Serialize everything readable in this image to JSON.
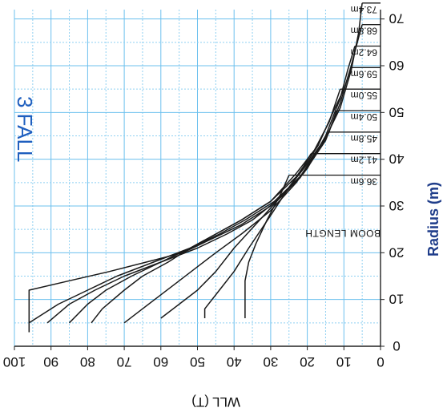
{
  "chart_data": {
    "type": "line",
    "title": "3 FALL",
    "xlabel": "WLL (T)",
    "ylabel": "Radius (m)",
    "annotation": "BOOM LENGTH",
    "xlim": [
      100,
      0
    ],
    "ylim": [
      0,
      72
    ],
    "x_ticks": [
      "100",
      "90",
      "80",
      "70",
      "60",
      "50",
      "40",
      "30",
      "20",
      "10",
      "0"
    ],
    "y_ticks": [
      "0",
      "10",
      "20",
      "30",
      "40",
      "50",
      "60",
      "70"
    ],
    "grid": "on",
    "series": [
      {
        "name": "36.6m",
        "points": [
          [
            37,
            6
          ],
          [
            37,
            14
          ],
          [
            36,
            18
          ],
          [
            34,
            22
          ],
          [
            31,
            27
          ],
          [
            27,
            33
          ],
          [
            25,
            36.6
          ]
        ]
      },
      {
        "name": "41.2m",
        "points": [
          [
            48,
            6
          ],
          [
            48,
            8
          ],
          [
            44,
            12
          ],
          [
            40,
            16
          ],
          [
            36,
            21
          ],
          [
            30,
            28
          ],
          [
            25,
            34
          ],
          [
            21,
            38.5
          ],
          [
            19,
            41.2
          ]
        ]
      },
      {
        "name": "45.8m",
        "points": [
          [
            60,
            6
          ],
          [
            55,
            9
          ],
          [
            50,
            12
          ],
          [
            45,
            16
          ],
          [
            40,
            21
          ],
          [
            33,
            27
          ],
          [
            26,
            33
          ],
          [
            20,
            39
          ],
          [
            16,
            43.5
          ],
          [
            14,
            45.8
          ]
        ]
      },
      {
        "name": "50.4m",
        "points": [
          [
            70,
            5
          ],
          [
            65,
            8
          ],
          [
            60,
            11
          ],
          [
            55,
            14
          ],
          [
            50,
            17
          ],
          [
            45,
            20
          ],
          [
            38,
            24
          ],
          [
            30,
            29
          ],
          [
            23,
            35
          ],
          [
            18,
            41
          ],
          [
            14,
            46
          ],
          [
            12,
            50.4
          ]
        ]
      },
      {
        "name": "55.0m",
        "points": [
          [
            79,
            5
          ],
          [
            76,
            8
          ],
          [
            70,
            12
          ],
          [
            65,
            15
          ],
          [
            58,
            18
          ],
          [
            52,
            21
          ],
          [
            45,
            24
          ],
          [
            38,
            27
          ],
          [
            30,
            31
          ],
          [
            23,
            37
          ],
          [
            18,
            42
          ],
          [
            14,
            48
          ],
          [
            11,
            55
          ]
        ]
      },
      {
        "name": "59.6m",
        "points": [
          [
            85,
            5
          ],
          [
            80,
            9
          ],
          [
            75,
            12
          ],
          [
            68,
            15
          ],
          [
            60,
            18
          ],
          [
            52,
            21
          ],
          [
            45,
            24
          ],
          [
            38,
            27
          ],
          [
            30,
            31
          ],
          [
            22,
            37
          ],
          [
            17,
            43
          ],
          [
            13,
            50
          ],
          [
            10,
            55
          ],
          [
            8,
            59.6
          ]
        ]
      },
      {
        "name": "64.2m",
        "points": [
          [
            91,
            5
          ],
          [
            85,
            9
          ],
          [
            78,
            12
          ],
          [
            70,
            15
          ],
          [
            60,
            18
          ],
          [
            50,
            21
          ],
          [
            42,
            24
          ],
          [
            35,
            27
          ],
          [
            27,
            32
          ],
          [
            20,
            38
          ],
          [
            15,
            45
          ],
          [
            11,
            53
          ],
          [
            9,
            59
          ],
          [
            7,
            64.2
          ]
        ]
      },
      {
        "name": "68.8m",
        "points": [
          [
            96,
            5
          ],
          [
            88,
            9
          ],
          [
            80,
            12
          ],
          [
            72,
            15
          ],
          [
            62,
            18
          ],
          [
            52,
            21
          ],
          [
            44,
            24
          ],
          [
            37,
            27
          ],
          [
            29,
            31
          ],
          [
            21,
            37
          ],
          [
            15,
            44
          ],
          [
            11,
            52
          ],
          [
            8,
            60
          ],
          [
            6,
            66
          ],
          [
            5,
            68.8
          ]
        ]
      },
      {
        "name": "73.4m",
        "points": [
          [
            96,
            3
          ],
          [
            96,
            12
          ],
          [
            85,
            14
          ],
          [
            74,
            16
          ],
          [
            64,
            18
          ],
          [
            54,
            20
          ],
          [
            46,
            23
          ],
          [
            38,
            26
          ],
          [
            30,
            30
          ],
          [
            22,
            36
          ],
          [
            16,
            43
          ],
          [
            11,
            51
          ],
          [
            8,
            59
          ],
          [
            6,
            67
          ],
          [
            5,
            73.4
          ]
        ]
      }
    ],
    "boom_lengths": [
      "36.6m",
      "41.2m",
      "45.8m",
      "50.4m",
      "55.0m",
      "59.6m",
      "64.2m",
      "68.8m",
      "73.4m"
    ],
    "boom_radii": [
      36.6,
      41.2,
      45.8,
      50.4,
      55.0,
      59.6,
      64.2,
      68.8,
      73.4
    ]
  }
}
